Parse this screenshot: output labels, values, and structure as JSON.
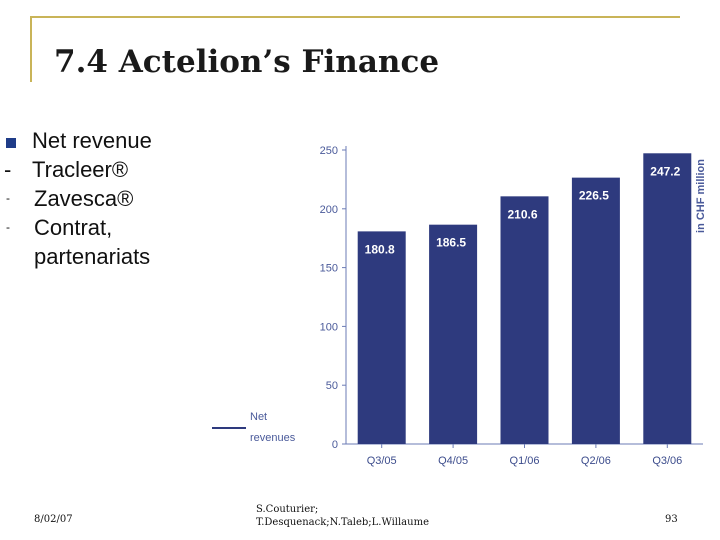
{
  "slide": {
    "title": "7.4 Actelion’s Finance",
    "bullets": [
      {
        "marker": "square",
        "text": "Net revenue"
      },
      {
        "marker": "dash",
        "text": "Tracleer®"
      },
      {
        "marker": "dash-small",
        "text": "Zavesca®"
      },
      {
        "marker": "dash-small",
        "text": "Contrat, partenariats"
      }
    ],
    "footer": {
      "date": "8/02/07",
      "authors_line1": "S.Couturier;",
      "authors_line2": "T.Desquenack;N.Taleb;L.Willaume",
      "page": "93"
    }
  },
  "colors": {
    "bar": "#2e3a7e",
    "frame": "#c9b458",
    "axis": "#6b7bb5"
  },
  "chart_data": {
    "type": "bar",
    "categories": [
      "Q3/05",
      "Q4/05",
      "Q1/06",
      "Q2/06",
      "Q3/06"
    ],
    "values": [
      180.8,
      186.5,
      210.6,
      226.5,
      247.2
    ],
    "value_labels": [
      "180.8",
      "186.5",
      "210.6",
      "226.5",
      "247.2"
    ],
    "ylabel": "in CHF million",
    "ylim": [
      0,
      250
    ],
    "yticks": [
      0,
      50,
      100,
      150,
      200,
      250
    ],
    "legend": {
      "line1": "Net",
      "line2": "revenues",
      "position": "bottom-left"
    },
    "grid": false
  }
}
